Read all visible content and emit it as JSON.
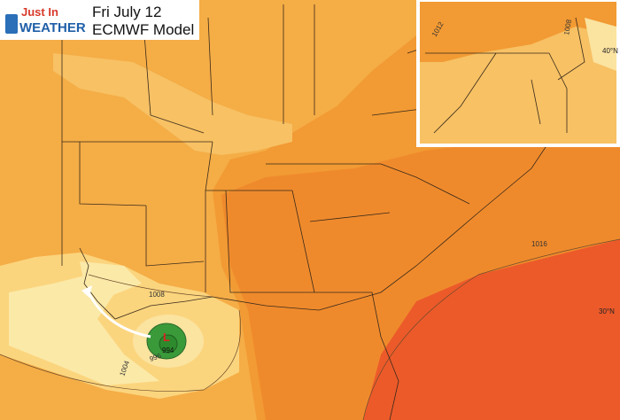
{
  "header": {
    "logo": {
      "line1": "Just In",
      "line2": "WEATHER"
    },
    "date": "Fri July 12",
    "model": "ECMWF Model"
  },
  "map": {
    "isobar_labels": [
      1008,
      1016,
      1004,
      996
    ],
    "low": {
      "symbol": "L",
      "pressure": 994
    },
    "latitude_label": "30°N"
  },
  "inset": {
    "isobar_labels": [
      1012,
      1008
    ],
    "latitude_label": "40°N"
  }
}
